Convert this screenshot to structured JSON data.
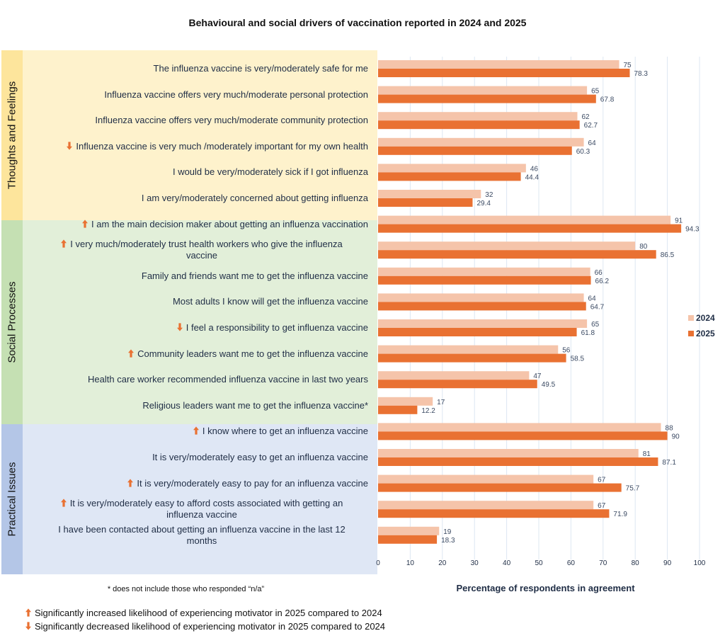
{
  "title": "Behavioural and social drivers of vaccination reported in 2024 and 2025",
  "colors": {
    "series_2024": "#f5c4aa",
    "series_2025": "#e97132",
    "arrow": "#e97132",
    "grid": "#dde7f2",
    "value_label": "#3b4a63"
  },
  "groups": [
    {
      "name": "Thoughts and Feelings",
      "start": 0,
      "end": 5
    },
    {
      "name": "Social Processes",
      "start": 6,
      "end": 13
    },
    {
      "name": "Practical Issues",
      "start": 14,
      "end": 18
    }
  ],
  "footnote": "* does not include those who responded “n/a”",
  "significance_legend": {
    "increased": "Significantly increased likelihood of experiencing motivator in 2025 compared to 2024",
    "decreased": "Significantly decreased likelihood of experiencing motivator in 2025 compared to 2024"
  },
  "chart_data": {
    "type": "bar",
    "orientation": "horizontal",
    "title": "Behavioural and social drivers of vaccination reported in 2024 and 2025",
    "xlabel": "Percentage of respondents in agreement",
    "ylabel": "",
    "xlim": [
      0,
      100
    ],
    "x_ticks": [
      "0",
      "10",
      "20",
      "30",
      "40",
      "50",
      "60",
      "70",
      "80",
      "90",
      "100"
    ],
    "grid": true,
    "legend_position": "right",
    "categories": [
      {
        "lines": [
          "The influenza vaccine is very/moderately safe for me"
        ],
        "sig": null
      },
      {
        "lines": [
          "Influenza vaccine offers very much/moderate personal protection"
        ],
        "sig": null
      },
      {
        "lines": [
          "Influenza vaccine offers very much/moderate community protection"
        ],
        "sig": null
      },
      {
        "lines": [
          "Influenza vaccine is very much /moderately important for my own health"
        ],
        "sig": "down"
      },
      {
        "lines": [
          "I would be very/moderately sick if I got influenza"
        ],
        "sig": null
      },
      {
        "lines": [
          "I am very/moderately concerned about getting influenza"
        ],
        "sig": null
      },
      {
        "lines": [
          "I am the main decision maker about getting an influenza vaccination"
        ],
        "sig": "up"
      },
      {
        "lines": [
          "I very much/moderately trust health workers who give the influenza",
          "vaccine"
        ],
        "sig": "up"
      },
      {
        "lines": [
          "Family and friends want me to get the influenza vaccine"
        ],
        "sig": null
      },
      {
        "lines": [
          "Most adults I know will get the influenza vaccine"
        ],
        "sig": null
      },
      {
        "lines": [
          "I feel a responsibility to get influenza vaccine"
        ],
        "sig": "down"
      },
      {
        "lines": [
          "Community leaders want me to get the influenza vaccine"
        ],
        "sig": "up"
      },
      {
        "lines": [
          "Health care worker recommended influenza vaccine in last two years"
        ],
        "sig": null
      },
      {
        "lines": [
          "Religious leaders want me to get the influenza vaccine*"
        ],
        "sig": null
      },
      {
        "lines": [
          "I know where to get an influenza vaccine"
        ],
        "sig": "up"
      },
      {
        "lines": [
          "It is very/moderately easy to get an influenza vaccine"
        ],
        "sig": null
      },
      {
        "lines": [
          "It is very/moderately easy to pay for an influenza vaccine"
        ],
        "sig": "up"
      },
      {
        "lines": [
          "It is very/moderately easy to afford costs associated with getting an",
          "influenza vaccine"
        ],
        "sig": "up"
      },
      {
        "lines": [
          "I have been contacted about getting an influenza vaccine in the last 12",
          "months"
        ],
        "sig": null
      }
    ],
    "series": [
      {
        "name": "2024",
        "values": [
          75,
          65,
          62,
          64,
          46,
          32,
          91,
          80,
          66,
          64,
          65,
          56,
          47,
          17,
          88,
          81,
          67,
          67,
          19
        ]
      },
      {
        "name": "2025",
        "values": [
          78.3,
          67.8,
          62.7,
          60.3,
          44.4,
          29.4,
          94.3,
          86.5,
          66.2,
          64.7,
          61.8,
          58.5,
          49.5,
          12.2,
          90,
          87.1,
          75.7,
          71.9,
          18.3
        ]
      }
    ]
  }
}
